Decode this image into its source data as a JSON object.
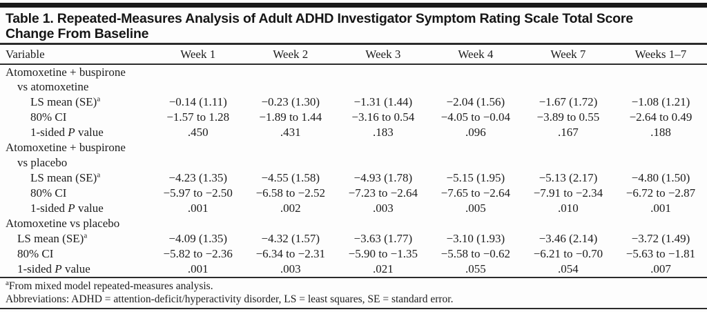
{
  "title_line1": "Table 1. Repeated-Measures Analysis of Adult ADHD Investigator Symptom Rating Scale Total Score",
  "title_line2": "Change From Baseline",
  "table": {
    "columns": [
      "Variable",
      "Week 1",
      "Week 2",
      "Week 3",
      "Week 4",
      "Week 7",
      "Weeks 1–7"
    ],
    "sections": [
      {
        "group_line1": "Atomoxetine + buspirone",
        "group_line2": "vs atomoxetine",
        "rows": [
          {
            "label": "LS mean (SE)",
            "label_sup": "a",
            "values": [
              "−0.14 (1.11)",
              "−0.23 (1.30)",
              "−1.31 (1.44)",
              "−2.04 (1.56)",
              "−1.67 (1.72)",
              "−1.08 (1.21)"
            ]
          },
          {
            "label": "80% CI",
            "values": [
              "−1.57 to 1.28",
              "−1.89 to 1.44",
              "−3.16 to 0.54",
              "−4.05 to −0.04",
              "−3.89 to 0.55",
              "−2.64 to 0.49"
            ]
          },
          {
            "label_pre": "1-sided ",
            "label_italic": "P",
            "label_post": " value",
            "values": [
              ".450",
              ".431",
              ".183",
              ".096",
              ".167",
              ".188"
            ]
          }
        ]
      },
      {
        "group_line1": "Atomoxetine + buspirone",
        "group_line2": "vs placebo",
        "rows": [
          {
            "label": "LS mean (SE)",
            "label_sup": "a",
            "values": [
              "−4.23 (1.35)",
              "−4.55 (1.58)",
              "−4.93 (1.78)",
              "−5.15 (1.95)",
              "−5.13 (2.17)",
              "−4.80 (1.50)"
            ]
          },
          {
            "label": "80% CI",
            "values": [
              "−5.97 to −2.50",
              "−6.58 to −2.52",
              "−7.23 to −2.64",
              "−7.65 to −2.64",
              "−7.91 to −2.34",
              "−6.72 to −2.87"
            ]
          },
          {
            "label_pre": "1-sided ",
            "label_italic": "P",
            "label_post": " value",
            "values": [
              ".001",
              ".002",
              ".003",
              ".005",
              ".010",
              ".001"
            ]
          }
        ]
      },
      {
        "group_line1": "Atomoxetine vs placebo",
        "group_line2": "",
        "rows": [
          {
            "label": "LS mean (SE)",
            "label_sup": "a",
            "values": [
              "−4.09 (1.35)",
              "−4.32 (1.57)",
              "−3.63 (1.77)",
              "−3.10 (1.93)",
              "−3.46 (2.14)",
              "−3.72 (1.49)"
            ]
          },
          {
            "label": "80% CI",
            "values": [
              "−5.82 to −2.36",
              "−6.34 to −2.31",
              "−5.90 to −1.35",
              "−5.58 to −0.62",
              "−6.21 to −0.70",
              "−5.63 to −1.81"
            ]
          },
          {
            "label_pre": "1-sided ",
            "label_italic": "P",
            "label_post": " value",
            "values": [
              ".001",
              ".003",
              ".021",
              ".055",
              ".054",
              ".007"
            ]
          }
        ]
      }
    ]
  },
  "footnotes": {
    "note1_sup": "a",
    "note1_text": "From mixed model repeated-measures analysis.",
    "note2_text": "Abbreviations: ADHD = attention-deficit/hyperactivity disorder, LS = least squares, SE = standard error."
  }
}
